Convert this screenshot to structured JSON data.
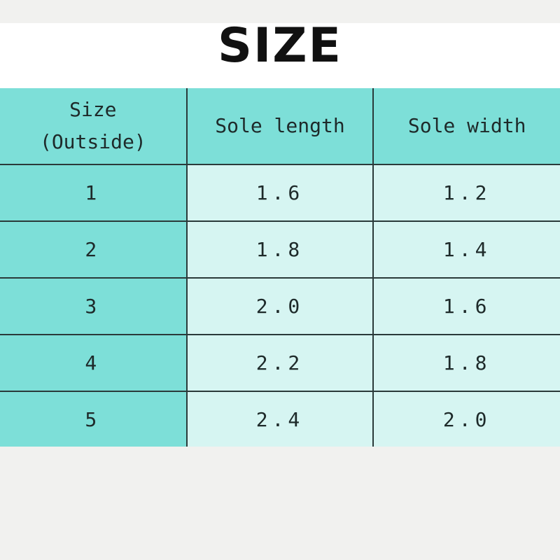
{
  "title": "SIZE",
  "table": {
    "headers": [
      "Size\n(Outside)",
      "Sole length",
      "Sole width"
    ],
    "header_lines": {
      "size_line1": "Size",
      "size_line2": "(Outside)"
    },
    "rows": [
      [
        "1",
        "1.6",
        "1.2"
      ],
      [
        "2",
        "1.8",
        "1.4"
      ],
      [
        "3",
        "2.0",
        "1.6"
      ],
      [
        "4",
        "2.2",
        "1.8"
      ],
      [
        "5",
        "2.4",
        "2.0"
      ]
    ]
  },
  "colors": {
    "header": "#7ddfd8",
    "cell": "#d6f5f2",
    "border": "#2a3a3a"
  }
}
